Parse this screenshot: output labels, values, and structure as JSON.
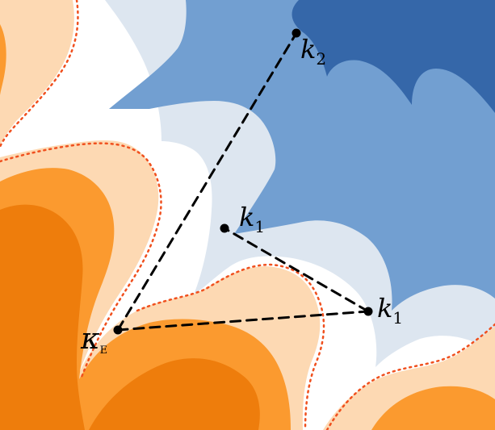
{
  "colors": {
    "dark_orange": "#ee7d0c",
    "mid_orange": "#fb9a2f",
    "light_orange": "#fdd9b3",
    "neutral": "#ffffff",
    "light_blue": "#dde6f0",
    "mid_blue": "#729fd1",
    "dark_blue": "#3567a9",
    "contour_dots": "#f0501e",
    "path": "#000000"
  },
  "points": [
    {
      "id": "kappa_e",
      "symbol": "κ",
      "sub": "E"
    },
    {
      "id": "k1_upper",
      "symbol": "k",
      "sub": "1"
    },
    {
      "id": "k1_lower",
      "symbol": "k",
      "sub": "1"
    },
    {
      "id": "k2",
      "symbol": "k",
      "sub": "2"
    }
  ]
}
